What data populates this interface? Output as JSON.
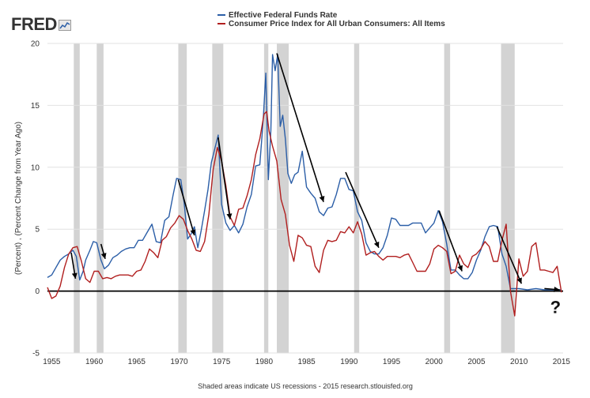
{
  "logo": "FRED",
  "footer": "Shaded areas indicate US recessions - 2015 research.stlouisfed.org",
  "colors": {
    "series1": "#2b5ea7",
    "series2": "#b11f1f",
    "recession": "#d3d3d3",
    "arrow": "#000000"
  },
  "chart_data": {
    "type": "line",
    "ylabel": "(Percent) , (Percent Change from Year Ago)",
    "xlim": [
      1954.5,
      2015.2
    ],
    "ylim": [
      -5,
      20
    ],
    "yticks": [
      -5,
      0,
      5,
      10,
      15,
      20
    ],
    "xticks": [
      1955,
      1960,
      1965,
      1970,
      1975,
      1980,
      1985,
      1990,
      1995,
      2000,
      2005,
      2010,
      2015
    ],
    "grid": "horizontal",
    "legend_position": "top",
    "recessions": [
      [
        1957.6,
        1958.3
      ],
      [
        1960.3,
        1961.1
      ],
      [
        1969.9,
        1970.9
      ],
      [
        1973.9,
        1975.2
      ],
      [
        1980.0,
        1980.5
      ],
      [
        1981.5,
        1982.9
      ],
      [
        1990.6,
        1991.2
      ],
      [
        2001.2,
        2001.9
      ],
      [
        2007.9,
        2009.5
      ]
    ],
    "series": [
      {
        "name": "Effective Federal Funds Rate",
        "color": "#2b5ea7",
        "x": [
          1954.5,
          1955.0,
          1955.5,
          1956.0,
          1956.5,
          1957.0,
          1957.5,
          1957.9,
          1958.3,
          1958.7,
          1959.0,
          1959.5,
          1959.9,
          1960.3,
          1960.8,
          1961.2,
          1961.7,
          1962.2,
          1962.7,
          1963.2,
          1963.7,
          1964.2,
          1964.7,
          1965.2,
          1965.7,
          1966.2,
          1966.8,
          1967.3,
          1967.8,
          1968.3,
          1968.8,
          1969.3,
          1969.7,
          1970.2,
          1970.6,
          1971.0,
          1971.4,
          1971.8,
          1972.2,
          1972.6,
          1973.0,
          1973.4,
          1973.8,
          1974.2,
          1974.6,
          1975.0,
          1975.5,
          1976.0,
          1976.5,
          1977.0,
          1977.5,
          1978.0,
          1978.5,
          1979.0,
          1979.5,
          1979.9,
          1980.2,
          1980.5,
          1980.8,
          1981.0,
          1981.3,
          1981.6,
          1981.9,
          1982.2,
          1982.5,
          1982.8,
          1983.2,
          1983.6,
          1984.0,
          1984.5,
          1985.0,
          1985.5,
          1986.0,
          1986.5,
          1987.0,
          1987.5,
          1988.0,
          1988.5,
          1989.0,
          1989.5,
          1990.0,
          1990.5,
          1991.0,
          1991.5,
          1992.0,
          1992.5,
          1993.0,
          1993.5,
          1994.0,
          1994.5,
          1995.0,
          1995.5,
          1996.0,
          1996.5,
          1997.0,
          1997.5,
          1998.0,
          1998.5,
          1999.0,
          1999.5,
          2000.0,
          2000.5,
          2001.0,
          2001.5,
          2002.0,
          2002.5,
          2003.0,
          2003.5,
          2004.0,
          2004.5,
          2005.0,
          2005.5,
          2006.0,
          2006.5,
          2007.0,
          2007.5,
          2008.0,
          2008.5,
          2009.0,
          2009.5,
          2010.0,
          2011.0,
          2012.0,
          2013.0,
          2014.0,
          2015.0
        ],
        "values": [
          1.1,
          1.3,
          1.9,
          2.5,
          2.8,
          3.0,
          3.3,
          2.8,
          0.9,
          1.6,
          2.5,
          3.3,
          4.0,
          3.9,
          2.5,
          1.8,
          2.1,
          2.7,
          2.9,
          3.2,
          3.4,
          3.5,
          3.5,
          4.1,
          4.1,
          4.7,
          5.4,
          4.0,
          3.9,
          5.7,
          6.0,
          7.8,
          9.1,
          9.0,
          7.1,
          4.2,
          4.6,
          5.2,
          3.5,
          4.9,
          6.5,
          8.2,
          10.4,
          11.5,
          12.6,
          7.0,
          5.5,
          4.9,
          5.3,
          4.7,
          5.4,
          6.8,
          7.8,
          10.1,
          10.2,
          13.8,
          17.6,
          9.0,
          13.0,
          19.1,
          17.8,
          19.1,
          13.3,
          14.2,
          12.3,
          9.5,
          8.7,
          9.4,
          9.6,
          11.3,
          8.4,
          7.9,
          7.5,
          6.4,
          6.1,
          6.7,
          6.8,
          7.8,
          9.1,
          9.1,
          8.2,
          8.1,
          6.4,
          5.7,
          3.9,
          3.2,
          3.0,
          3.0,
          3.5,
          4.5,
          5.9,
          5.8,
          5.3,
          5.3,
          5.3,
          5.5,
          5.5,
          5.5,
          4.7,
          5.1,
          5.5,
          6.5,
          5.6,
          3.8,
          1.7,
          1.7,
          1.3,
          1.0,
          1.0,
          1.5,
          2.5,
          3.3,
          4.4,
          5.2,
          5.3,
          5.2,
          3.0,
          2.0,
          0.2,
          0.2,
          0.2,
          0.1,
          0.2,
          0.1,
          0.1,
          0.1
        ]
      },
      {
        "name": "Consumer Price Index for All Urban Consumers: All Items",
        "color": "#b11f1f",
        "x": [
          1954.5,
          1955.0,
          1955.5,
          1956.0,
          1956.5,
          1957.0,
          1957.5,
          1958.0,
          1958.5,
          1959.0,
          1959.5,
          1960.0,
          1960.5,
          1961.0,
          1961.5,
          1962.0,
          1962.5,
          1963.0,
          1963.5,
          1964.0,
          1964.5,
          1965.0,
          1965.5,
          1966.0,
          1966.5,
          1967.0,
          1967.5,
          1968.0,
          1968.5,
          1969.0,
          1969.5,
          1970.0,
          1970.5,
          1971.0,
          1971.5,
          1972.0,
          1972.5,
          1973.0,
          1973.5,
          1974.0,
          1974.5,
          1975.0,
          1975.5,
          1976.0,
          1976.5,
          1977.0,
          1977.5,
          1978.0,
          1978.5,
          1979.0,
          1979.5,
          1980.0,
          1980.3,
          1980.6,
          1981.0,
          1981.5,
          1982.0,
          1982.5,
          1983.0,
          1983.5,
          1984.0,
          1984.5,
          1985.0,
          1985.5,
          1986.0,
          1986.5,
          1987.0,
          1987.5,
          1988.0,
          1988.5,
          1989.0,
          1989.5,
          1990.0,
          1990.5,
          1991.0,
          1991.5,
          1992.0,
          1992.5,
          1993.0,
          1993.5,
          1994.0,
          1994.5,
          1995.0,
          1995.5,
          1996.0,
          1996.5,
          1997.0,
          1997.5,
          1998.0,
          1998.5,
          1999.0,
          1999.5,
          2000.0,
          2000.5,
          2001.0,
          2001.5,
          2002.0,
          2002.5,
          2003.0,
          2003.5,
          2004.0,
          2004.5,
          2005.0,
          2005.5,
          2006.0,
          2006.5,
          2007.0,
          2007.5,
          2008.0,
          2008.5,
          2009.0,
          2009.5,
          2010.0,
          2010.5,
          2011.0,
          2011.5,
          2012.0,
          2012.5,
          2013.0,
          2013.5,
          2014.0,
          2014.5,
          2015.0
        ],
        "values": [
          0.3,
          -0.6,
          -0.4,
          0.4,
          1.9,
          3.0,
          3.5,
          3.6,
          2.4,
          1.0,
          0.7,
          1.6,
          1.6,
          1.0,
          1.1,
          1.0,
          1.2,
          1.3,
          1.3,
          1.3,
          1.2,
          1.6,
          1.7,
          2.4,
          3.4,
          3.1,
          2.7,
          4.1,
          4.4,
          5.1,
          5.5,
          6.1,
          5.8,
          4.9,
          4.2,
          3.3,
          3.2,
          4.0,
          6.2,
          9.8,
          11.6,
          10.5,
          8.5,
          6.0,
          5.3,
          6.6,
          6.7,
          7.7,
          9.0,
          11.0,
          12.3,
          14.3,
          14.5,
          12.9,
          11.7,
          10.5,
          7.4,
          6.2,
          3.7,
          2.4,
          4.5,
          4.3,
          3.7,
          3.6,
          2.0,
          1.5,
          3.3,
          4.1,
          4.0,
          4.1,
          4.8,
          4.7,
          5.2,
          4.7,
          5.6,
          4.6,
          2.9,
          3.1,
          3.2,
          2.8,
          2.5,
          2.8,
          2.8,
          2.8,
          2.7,
          2.9,
          3.0,
          2.3,
          1.6,
          1.6,
          1.6,
          2.2,
          3.4,
          3.7,
          3.5,
          3.2,
          1.4,
          1.6,
          2.9,
          2.2,
          1.9,
          2.8,
          3.0,
          3.4,
          4.0,
          3.6,
          2.4,
          2.4,
          4.1,
          5.4,
          0.0,
          -2.0,
          2.6,
          1.2,
          1.6,
          3.6,
          3.9,
          1.7,
          1.7,
          1.6,
          1.5,
          2.0,
          -0.1
        ]
      }
    ],
    "annotations": [
      "?"
    ]
  }
}
